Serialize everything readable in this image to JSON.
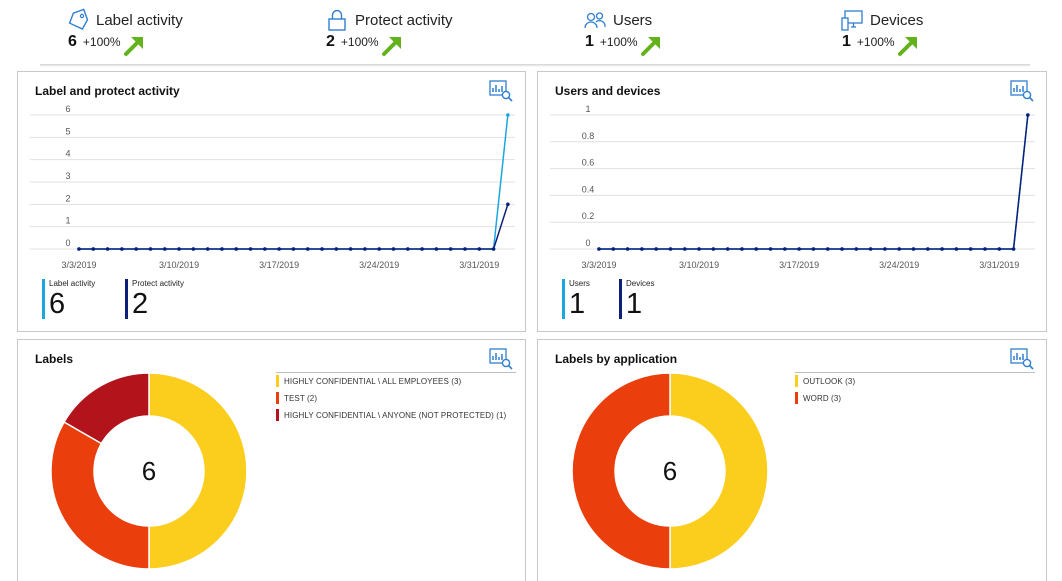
{
  "kpis": [
    {
      "icon": "tag-icon",
      "title": "Label activity",
      "value": "6",
      "change": "+100%"
    },
    {
      "icon": "lock-icon",
      "title": "Protect activity",
      "value": "2",
      "change": "+100%"
    },
    {
      "icon": "users-icon",
      "title": "Users",
      "value": "1",
      "change": "+100%"
    },
    {
      "icon": "monitor-icon",
      "title": "Devices",
      "value": "1",
      "change": "+100%"
    }
  ],
  "colors": {
    "accent_blue": "#2f7fd1",
    "trend_green": "#63b21b",
    "light_blue": "#1aa7e0",
    "navy": "#0c1f7a",
    "yellow": "#fbcd1c",
    "orange_red": "#ea3e0d",
    "dark_red": "#b3141c"
  },
  "panels": {
    "label_protect": {
      "title": "Label and protect activity"
    },
    "users_devices": {
      "title": "Users and devices"
    },
    "labels": {
      "title": "Labels"
    },
    "labels_by_app": {
      "title": "Labels by application"
    }
  },
  "legends": {
    "label_protect": [
      {
        "name": "Label activity",
        "value": "6",
        "color": "#1aa7e0"
      },
      {
        "name": "Protect activity",
        "value": "2",
        "color": "#0c1f7a"
      }
    ],
    "users_devices": [
      {
        "name": "Users",
        "value": "1",
        "color": "#1aa7e0"
      },
      {
        "name": "Devices",
        "value": "1",
        "color": "#0c1f7a"
      }
    ]
  },
  "chart_data": [
    {
      "type": "line",
      "title": "Label and protect activity",
      "x_ticks": [
        "3/3/2019",
        "3/10/2019",
        "3/17/2019",
        "3/24/2019",
        "3/31/2019"
      ],
      "x_start": "3/3/2019",
      "x_end": "4/2/2019",
      "ylim": [
        0,
        6
      ],
      "y_ticks": [
        "0",
        "1",
        "2",
        "3",
        "4",
        "5",
        "6"
      ],
      "grid": true,
      "series": [
        {
          "name": "Label activity",
          "color": "#1aa7e0",
          "values": [
            0,
            0,
            0,
            0,
            0,
            0,
            0,
            0,
            0,
            0,
            0,
            0,
            0,
            0,
            0,
            0,
            0,
            0,
            0,
            0,
            0,
            0,
            0,
            0,
            0,
            0,
            0,
            0,
            0,
            0,
            6
          ]
        },
        {
          "name": "Protect activity",
          "color": "#0c1f7a",
          "values": [
            0,
            0,
            0,
            0,
            0,
            0,
            0,
            0,
            0,
            0,
            0,
            0,
            0,
            0,
            0,
            0,
            0,
            0,
            0,
            0,
            0,
            0,
            0,
            0,
            0,
            0,
            0,
            0,
            0,
            0,
            2
          ]
        }
      ]
    },
    {
      "type": "line",
      "title": "Users and devices",
      "x_ticks": [
        "3/3/2019",
        "3/10/2019",
        "3/17/2019",
        "3/24/2019",
        "3/31/2019"
      ],
      "x_start": "3/3/2019",
      "x_end": "4/2/2019",
      "ylim": [
        0,
        1
      ],
      "y_ticks": [
        "0",
        "0.2",
        "0.4",
        "0.6",
        "0.8",
        "1"
      ],
      "grid": true,
      "series": [
        {
          "name": "Users",
          "color": "#1aa7e0",
          "values": [
            0,
            0,
            0,
            0,
            0,
            0,
            0,
            0,
            0,
            0,
            0,
            0,
            0,
            0,
            0,
            0,
            0,
            0,
            0,
            0,
            0,
            0,
            0,
            0,
            0,
            0,
            0,
            0,
            0,
            0,
            1
          ]
        },
        {
          "name": "Devices",
          "color": "#0c1f7a",
          "values": [
            0,
            0,
            0,
            0,
            0,
            0,
            0,
            0,
            0,
            0,
            0,
            0,
            0,
            0,
            0,
            0,
            0,
            0,
            0,
            0,
            0,
            0,
            0,
            0,
            0,
            0,
            0,
            0,
            0,
            0,
            1
          ]
        }
      ]
    },
    {
      "type": "pie",
      "title": "Labels",
      "total": "6",
      "slices": [
        {
          "label": "HIGHLY CONFIDENTIAL \\ ALL EMPLOYEES (3)",
          "value": 3,
          "color": "#fbcd1c"
        },
        {
          "label": "TEST (2)",
          "value": 2,
          "color": "#ea3e0d"
        },
        {
          "label": "HIGHLY CONFIDENTIAL \\ ANYONE (NOT PROTECTED) (1)",
          "value": 1,
          "color": "#b3141c"
        }
      ]
    },
    {
      "type": "pie",
      "title": "Labels by application",
      "total": "6",
      "slices": [
        {
          "label": "OUTLOOK (3)",
          "value": 3,
          "color": "#fbcd1c"
        },
        {
          "label": "WORD (3)",
          "value": 3,
          "color": "#ea3e0d"
        }
      ]
    }
  ]
}
